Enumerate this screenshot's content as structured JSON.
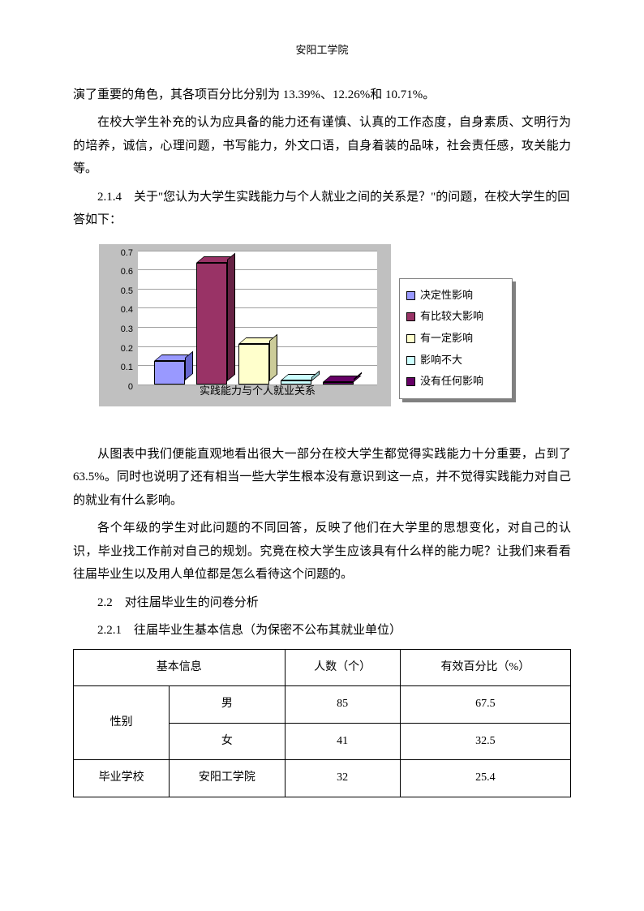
{
  "header": "安阳工学院",
  "paragraphs": {
    "p1": "演了重要的角色，其各项百分比分别为 13.39%、12.26%和 10.71%。",
    "p2": "在校大学生补充的认为应具备的能力还有谨慎、认真的工作态度，自身素质、文明行为的培养，诚信，心理问题，书写能力，外文口语，自身着装的品味，社会责任感，攻关能力等。",
    "p3": "2.1.4　关于\"您认为大学生实践能力与个人就业之间的关系是？\"的问题，在校大学生的回答如下：",
    "p4": "从图表中我们便能直观地看出很大一部分在校大学生都觉得实践能力十分重要，占到了 63.5%。同时也说明了还有相当一些大学生根本没有意识到这一点，并不觉得实践能力对自己的就业有什么影响。",
    "p5": "各个年级的学生对此问题的不同回答，反映了他们在大学里的思想变化，对自己的认识，毕业找工作前对自己的规划。究竟在校大学生应该具有什么样的能力呢？让我们来看看往届毕业生以及用人单位都是怎么看待这个问题的。",
    "s22": "2.2　对往届毕业生的问卷分析",
    "s221": "2.2.1　往届毕业生基本信息（为保密不公布其就业单位）"
  },
  "chart": {
    "type": "bar",
    "xlabel": "实践能力与个人就业关系",
    "ylim": [
      0,
      0.7
    ],
    "ytick_step": 0.1,
    "yticks": [
      "0",
      "0.1",
      "0.2",
      "0.3",
      "0.4",
      "0.5",
      "0.6",
      "0.7"
    ],
    "background_color": "#c0c0c0",
    "plot_background": "#ffffff",
    "grid_color": "#a0a0a0",
    "series": [
      {
        "label": "决定性影响",
        "value": 0.12,
        "color": "#9999ff",
        "color_dark": "#6666cc"
      },
      {
        "label": "有比较大影响",
        "value": 0.635,
        "color": "#993366",
        "color_dark": "#662244"
      },
      {
        "label": "有一定影响",
        "value": 0.21,
        "color": "#ffffcc",
        "color_dark": "#cccc99"
      },
      {
        "label": "影响不大",
        "value": 0.02,
        "color": "#ccffff",
        "color_dark": "#99cccc"
      },
      {
        "label": "没有任何影响",
        "value": 0.01,
        "color": "#660066",
        "color_dark": "#440044"
      }
    ]
  },
  "table": {
    "headers": {
      "basic_info": "基本信息",
      "count": "人数（个）",
      "percent": "有效百分比（%）"
    },
    "rows": [
      {
        "cat": "性别",
        "sub": "男",
        "count": "85",
        "pct": "67.5"
      },
      {
        "cat": "",
        "sub": "女",
        "count": "41",
        "pct": "32.5"
      },
      {
        "cat": "毕业学校",
        "sub": "安阳工学院",
        "count": "32",
        "pct": "25.4"
      }
    ]
  }
}
